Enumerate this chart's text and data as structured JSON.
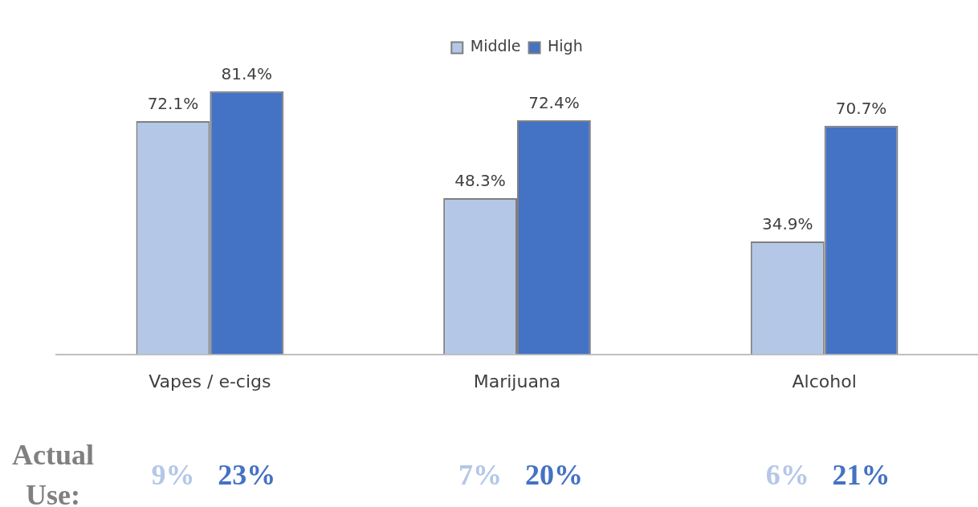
{
  "chart_data": {
    "type": "bar",
    "categories": [
      "Vapes / e-cigs",
      "Marijuana",
      "Alcohol"
    ],
    "series": [
      {
        "name": "Middle",
        "color": "#b4c7e7",
        "values": [
          72.1,
          48.3,
          34.9
        ],
        "value_labels": [
          "72.1%",
          "48.3%",
          "34.9%"
        ]
      },
      {
        "name": "High",
        "color": "#4472c4",
        "values": [
          81.4,
          72.4,
          70.7
        ],
        "value_labels": [
          "81.4%",
          "72.4%",
          "70.7%"
        ]
      }
    ],
    "annotations": [
      "Actual Use:",
      "9%",
      "23%",
      "7%",
      "20%",
      "6%",
      "21%"
    ],
    "legend": "top",
    "grid": false,
    "tick_labels": "x"
  }
}
